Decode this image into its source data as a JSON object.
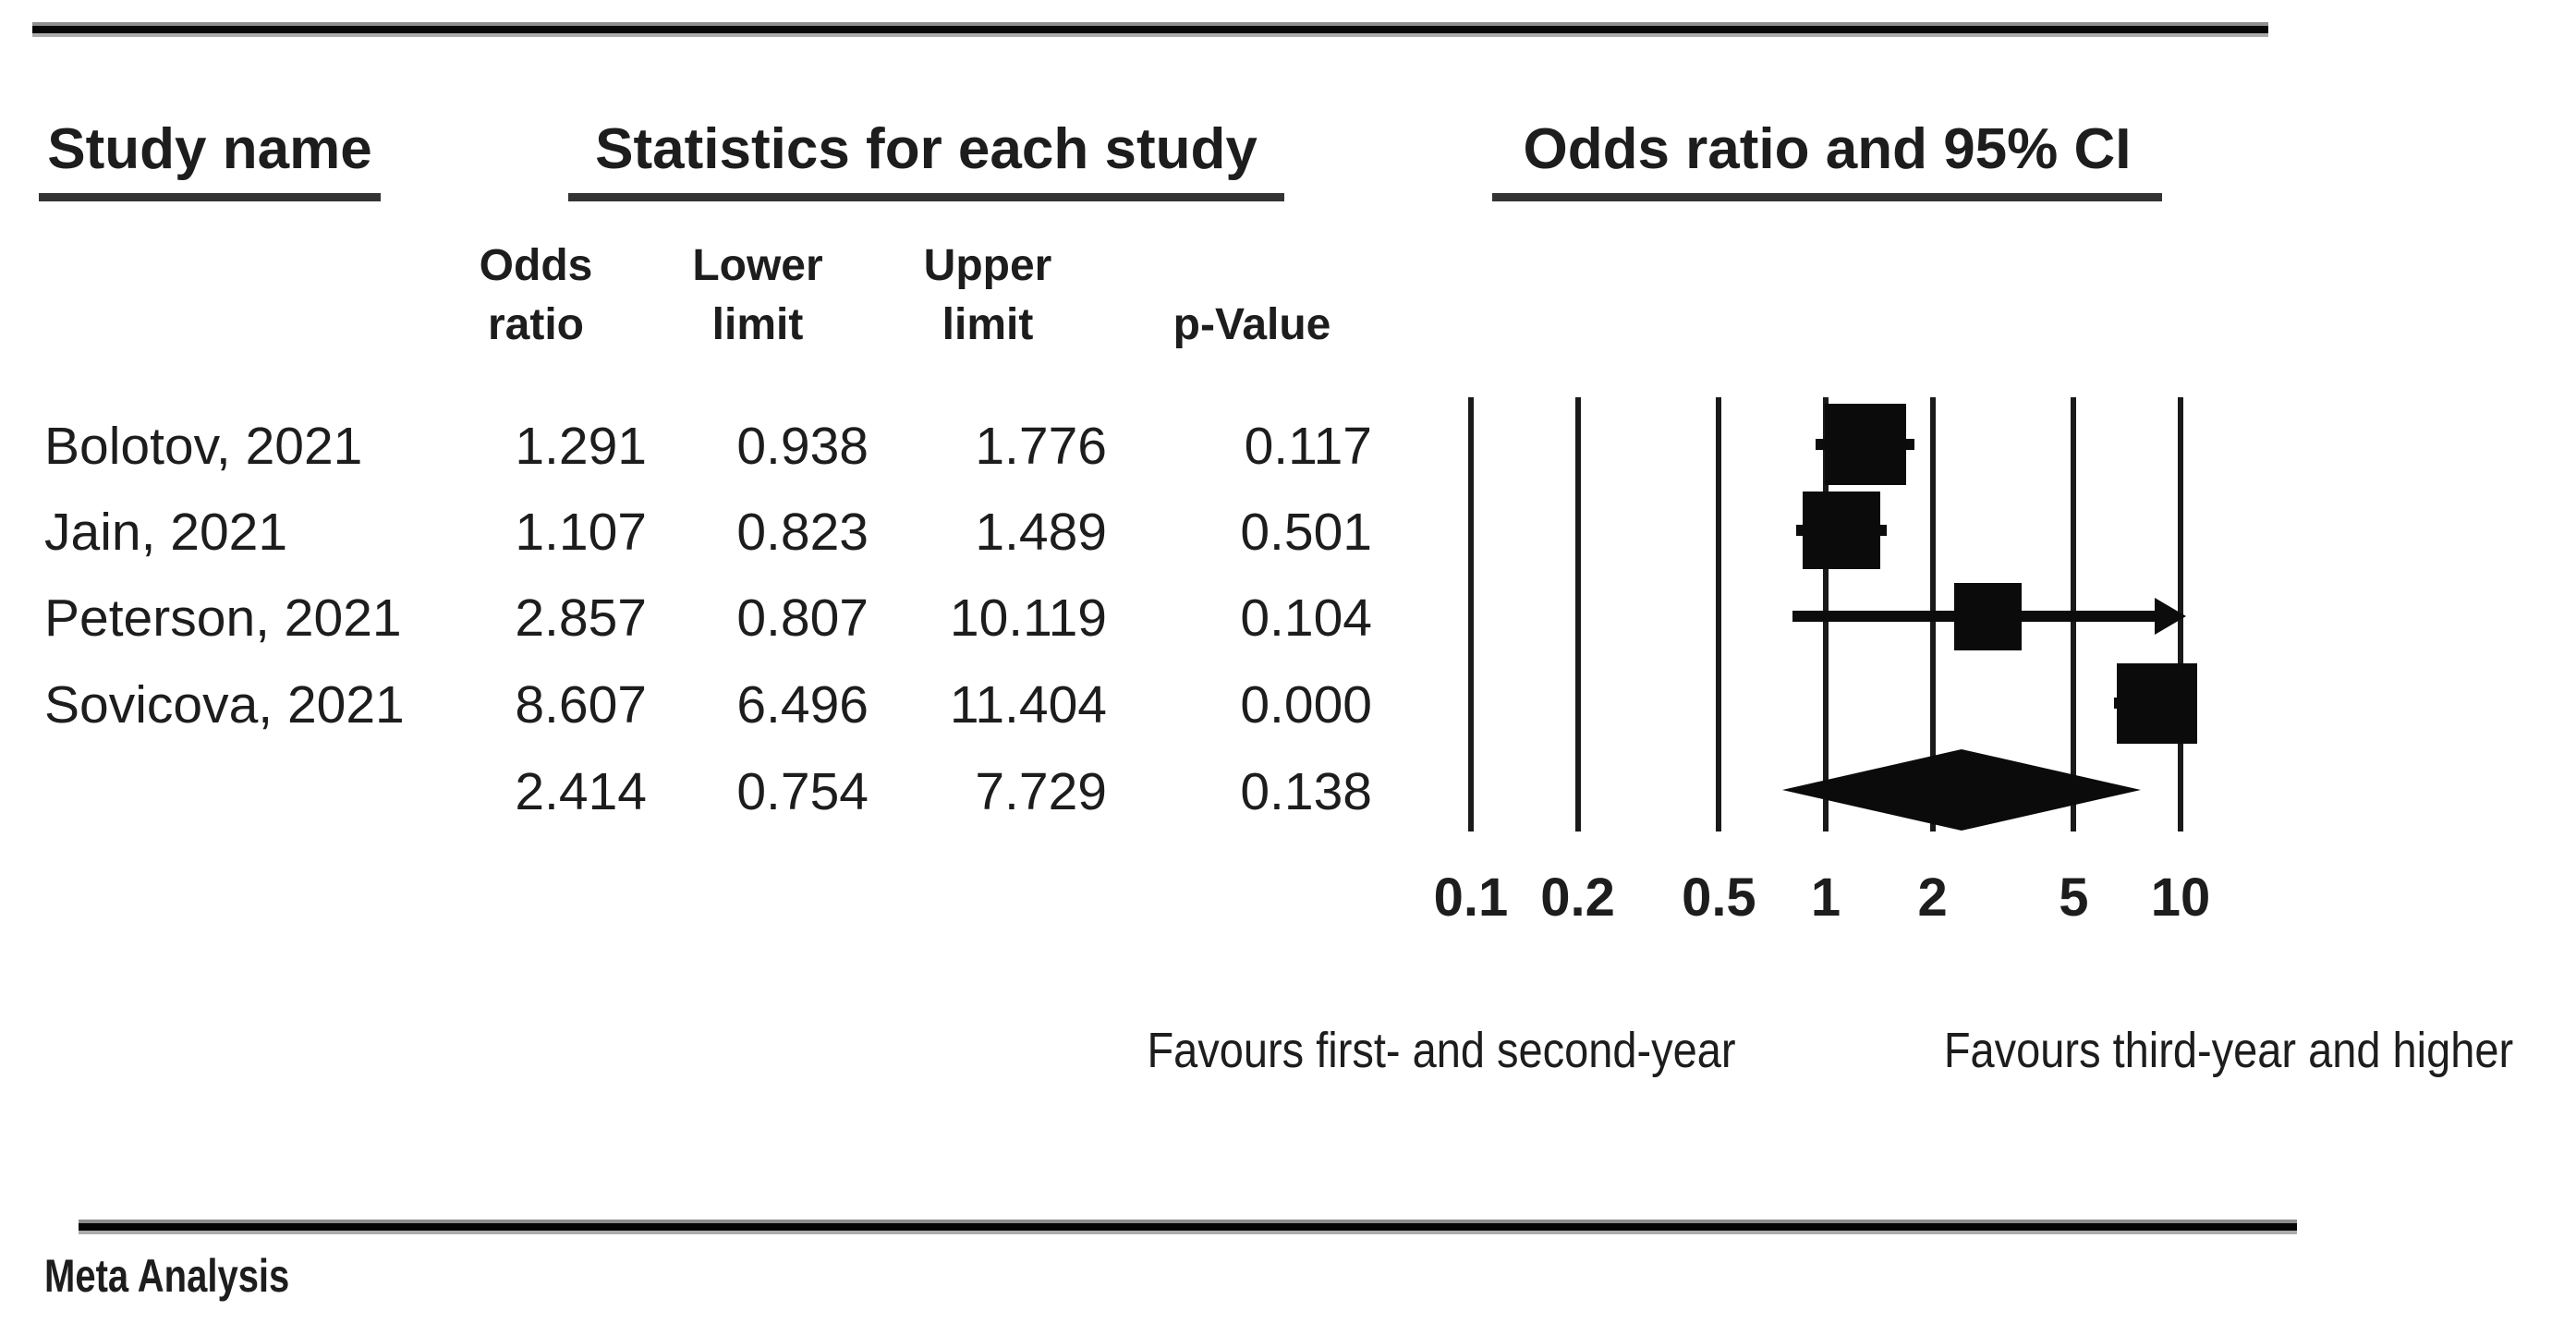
{
  "titles": {
    "study": "Study name",
    "stats": "Statistics for each study",
    "plot": "Odds ratio and 95% CI"
  },
  "stat_columns": {
    "odds_line1": "Odds",
    "odds_line2": "ratio",
    "lower_line1": "Lower",
    "lower_line2": "limit",
    "upper_line1": "Upper",
    "upper_line2": "limit",
    "p_value": "p-Value"
  },
  "chart_data": {
    "type": "forest",
    "effect_measure": "Odds ratio",
    "scale": "log10",
    "xlim": [
      0.1,
      10
    ],
    "ticks": [
      0.1,
      0.2,
      0.5,
      1,
      2,
      5,
      10
    ],
    "tick_labels": [
      "0.1",
      "0.2",
      "0.5",
      "1",
      "2",
      "5",
      "10"
    ],
    "studies": [
      {
        "name": "Bolotov, 2021",
        "or": 1.291,
        "lower": 0.938,
        "upper": 1.776,
        "p": 0.117,
        "marker": 88,
        "arrow": false
      },
      {
        "name": "Jain, 2021",
        "or": 1.107,
        "lower": 0.823,
        "upper": 1.489,
        "p": 0.501,
        "marker": 84,
        "arrow": false
      },
      {
        "name": "Peterson, 2021",
        "or": 2.857,
        "lower": 0.807,
        "upper": 10.119,
        "p": 0.104,
        "marker": 73,
        "arrow": true
      },
      {
        "name": "Sovicova, 2021",
        "or": 8.607,
        "lower": 6.496,
        "upper": 11.404,
        "p": 0.0,
        "marker": 87,
        "arrow": false
      }
    ],
    "summary": {
      "or": 2.414,
      "lower": 0.754,
      "upper": 7.729,
      "p": 0.138
    },
    "favours_left": "Favours first- and second-year",
    "favours_right": "Favours third-year and higher"
  },
  "footer": {
    "label": "Meta Analysis"
  }
}
